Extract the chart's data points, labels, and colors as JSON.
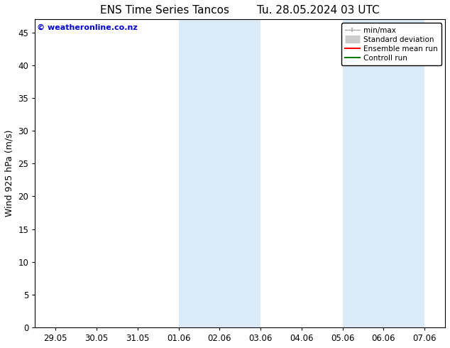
{
  "title": "ENS Time Series Tancos",
  "title_date": "Tu. 28.05.2024 03 UTC",
  "ylabel": "Wind 925 hPa (m/s)",
  "watermark": "© weatheronline.co.nz",
  "ylim": [
    0,
    47
  ],
  "yticks": [
    0,
    5,
    10,
    15,
    20,
    25,
    30,
    35,
    40,
    45
  ],
  "xtick_labels": [
    "29.05",
    "30.05",
    "31.05",
    "01.06",
    "02.06",
    "03.06",
    "04.06",
    "05.06",
    "06.06",
    "07.06"
  ],
  "x_values": [
    0,
    1,
    2,
    3,
    4,
    5,
    6,
    7,
    8,
    9
  ],
  "shaded_bands": [
    {
      "xmin": 3,
      "xmax": 5,
      "color": "#daeaf6"
    },
    {
      "xmin": 7,
      "xmax": 9,
      "color": "#daeaf6"
    }
  ],
  "bg_color": "#ffffff",
  "legend_items": [
    {
      "label": "min/max",
      "color": "#aaaaaa",
      "lw": 1
    },
    {
      "label": "Standard deviation",
      "color": "#cccccc",
      "lw": 6
    },
    {
      "label": "Ensemble mean run",
      "color": "#ff0000",
      "lw": 1.5
    },
    {
      "label": "Controll run",
      "color": "#008000",
      "lw": 1.5
    }
  ],
  "title_fontsize": 11,
  "tick_fontsize": 8.5,
  "label_fontsize": 9,
  "watermark_color": "#0000cc",
  "frame_color": "#000000"
}
